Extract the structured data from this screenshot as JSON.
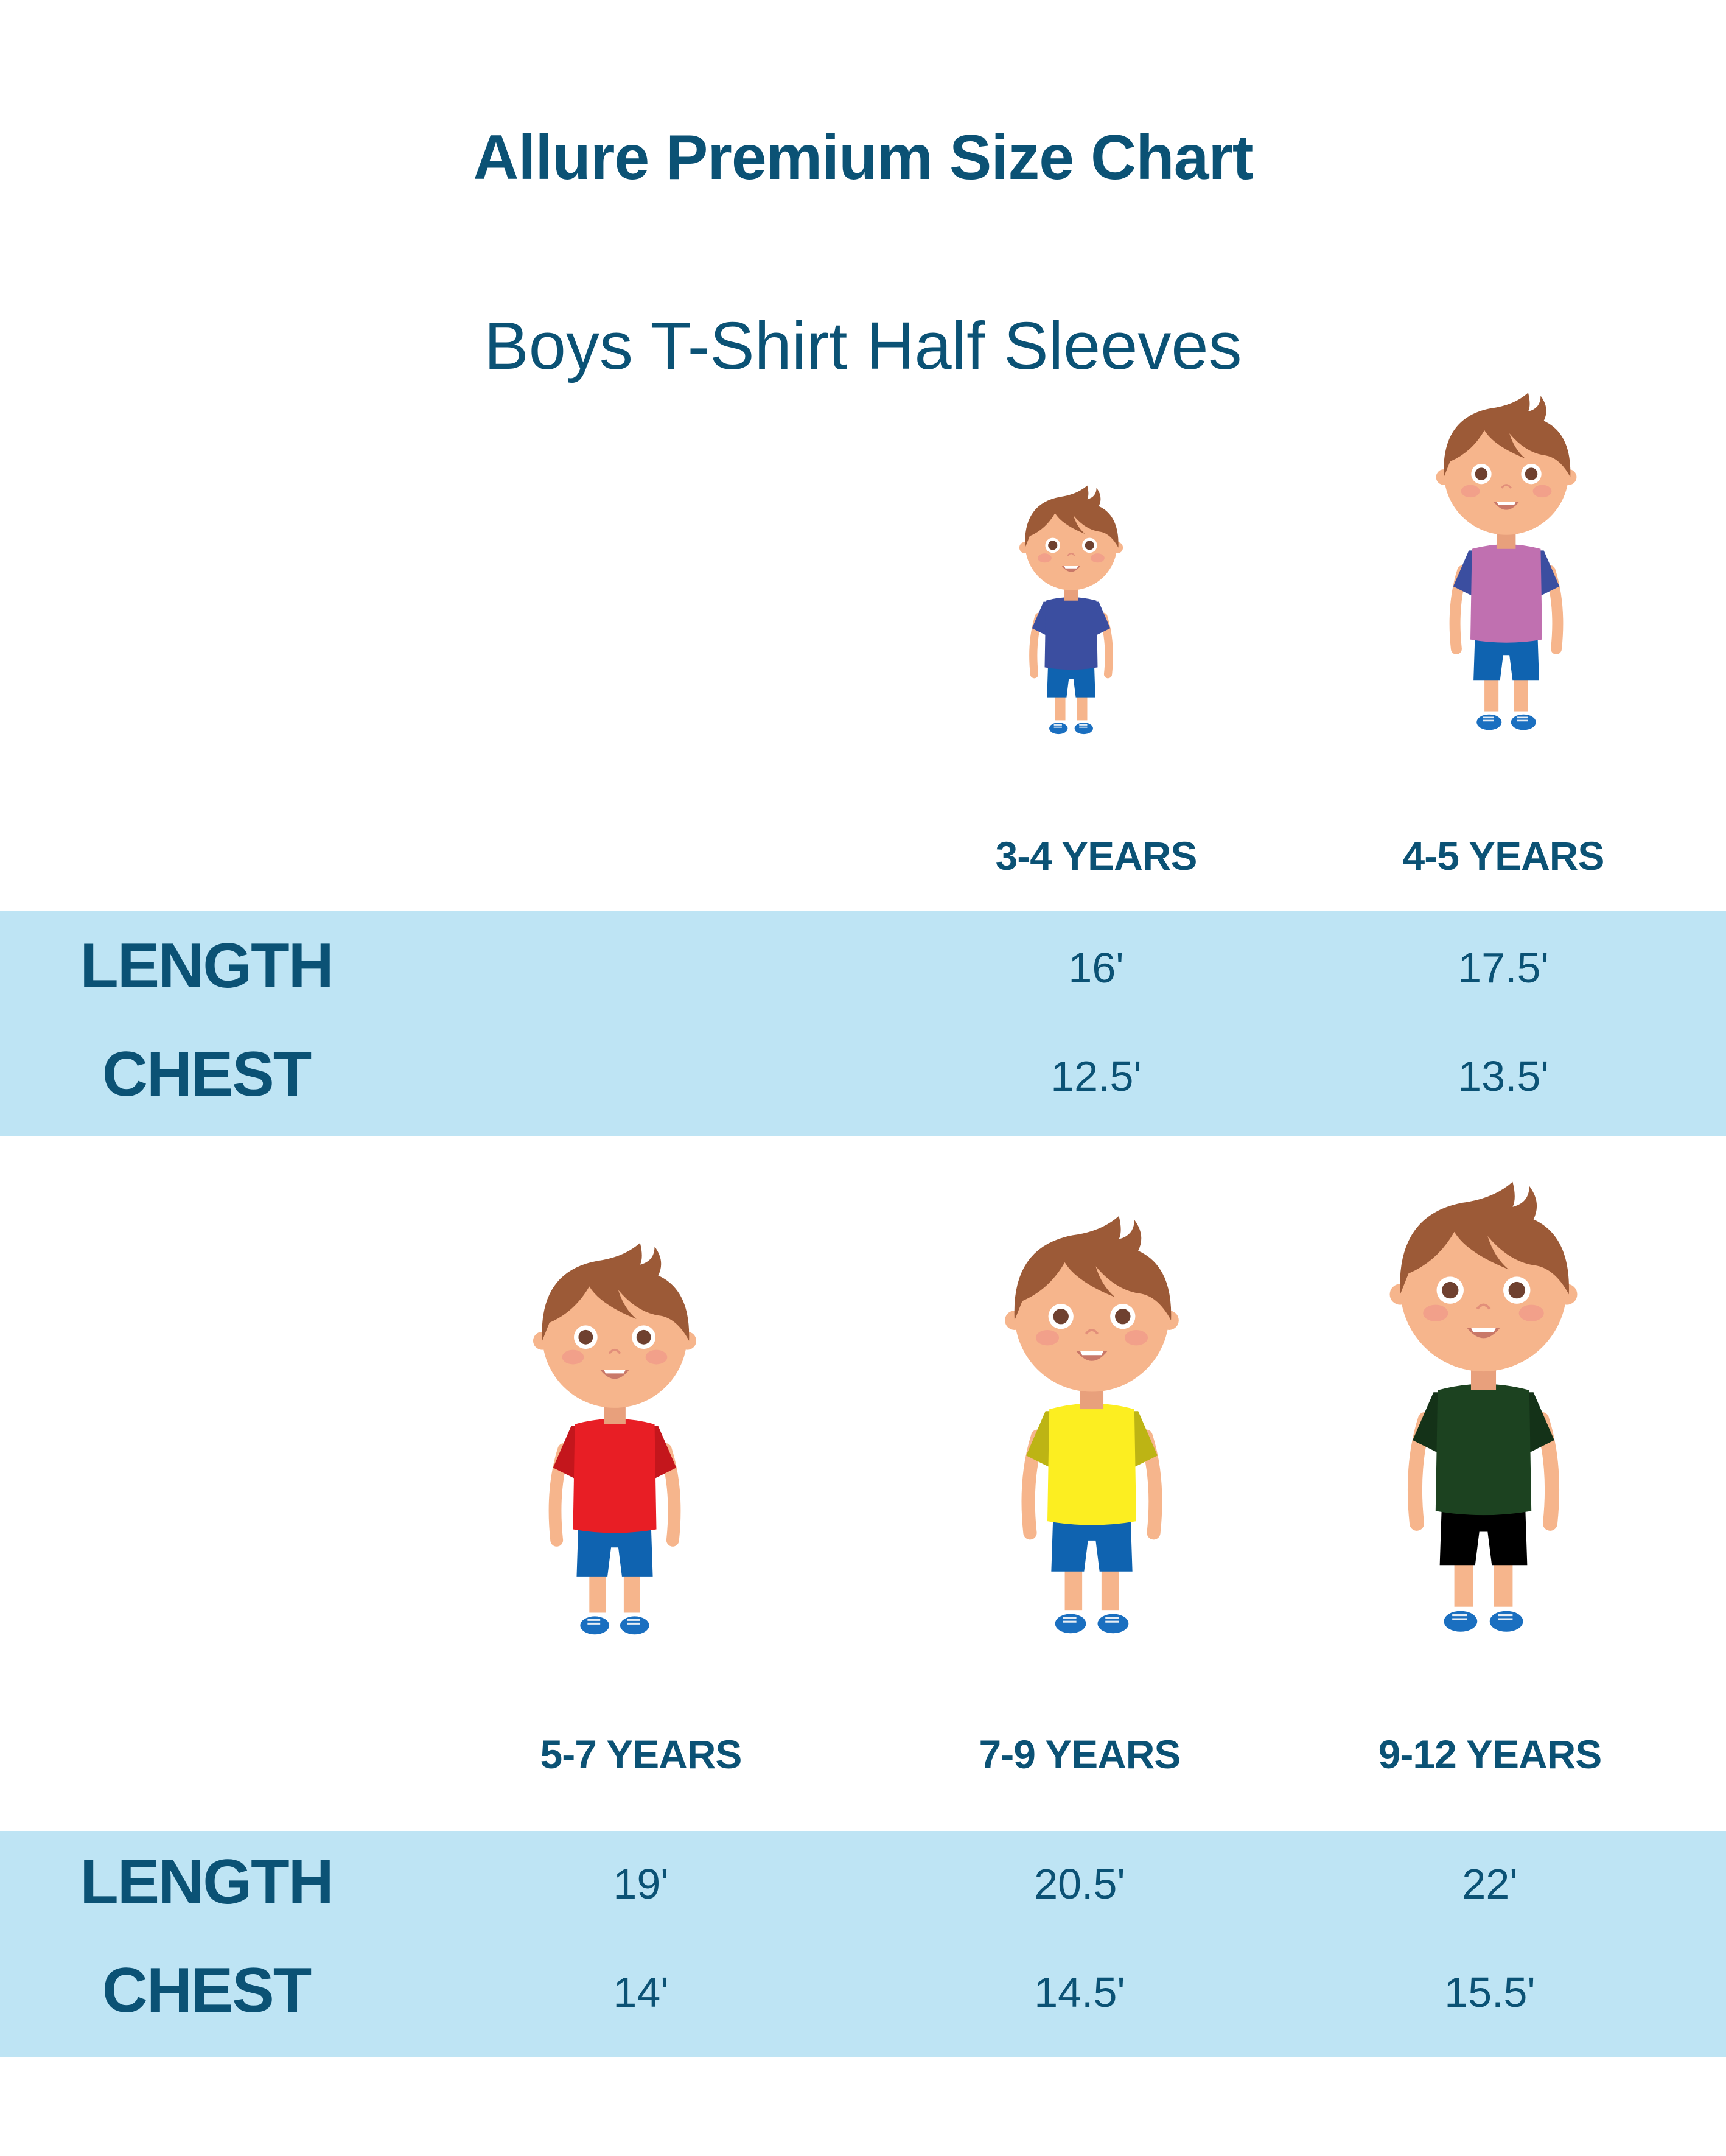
{
  "title": "Allure Premium Size Chart",
  "subtitle": "Boys T-Shirt Half Sleeves",
  "colors": {
    "text": "#0b5275",
    "band": "#bee4f4"
  },
  "row_labels": {
    "length": "LENGTH",
    "chest": "CHEST"
  },
  "sizes": [
    {
      "age": "3-4 YEARS",
      "length": "16'",
      "chest": "12.5'",
      "shirt": "#3b4ea0",
      "sleeve": "#3b4ea0",
      "shorts": "#0f63b0"
    },
    {
      "age": "4-5 YEARS",
      "length": "17.5'",
      "chest": "13.5'",
      "shirt": "#c070b0",
      "sleeve": "#3b4ea0",
      "shorts": "#0f63b0"
    },
    {
      "age": "5-7 YEARS",
      "length": "19'",
      "chest": "14'",
      "shirt": "#e81e25",
      "sleeve": "#c4161c",
      "shorts": "#0f63b0"
    },
    {
      "age": "7-9 YEARS",
      "length": "20.5'",
      "chest": "14.5'",
      "shirt": "#fcee21",
      "sleeve": "#bdb414",
      "shorts": "#0f63b0"
    },
    {
      "age": "9-12 YEARS",
      "length": "22'",
      "chest": "15.5'",
      "shirt": "#1c4220",
      "sleeve": "#143218",
      "shorts": "#000000"
    }
  ]
}
